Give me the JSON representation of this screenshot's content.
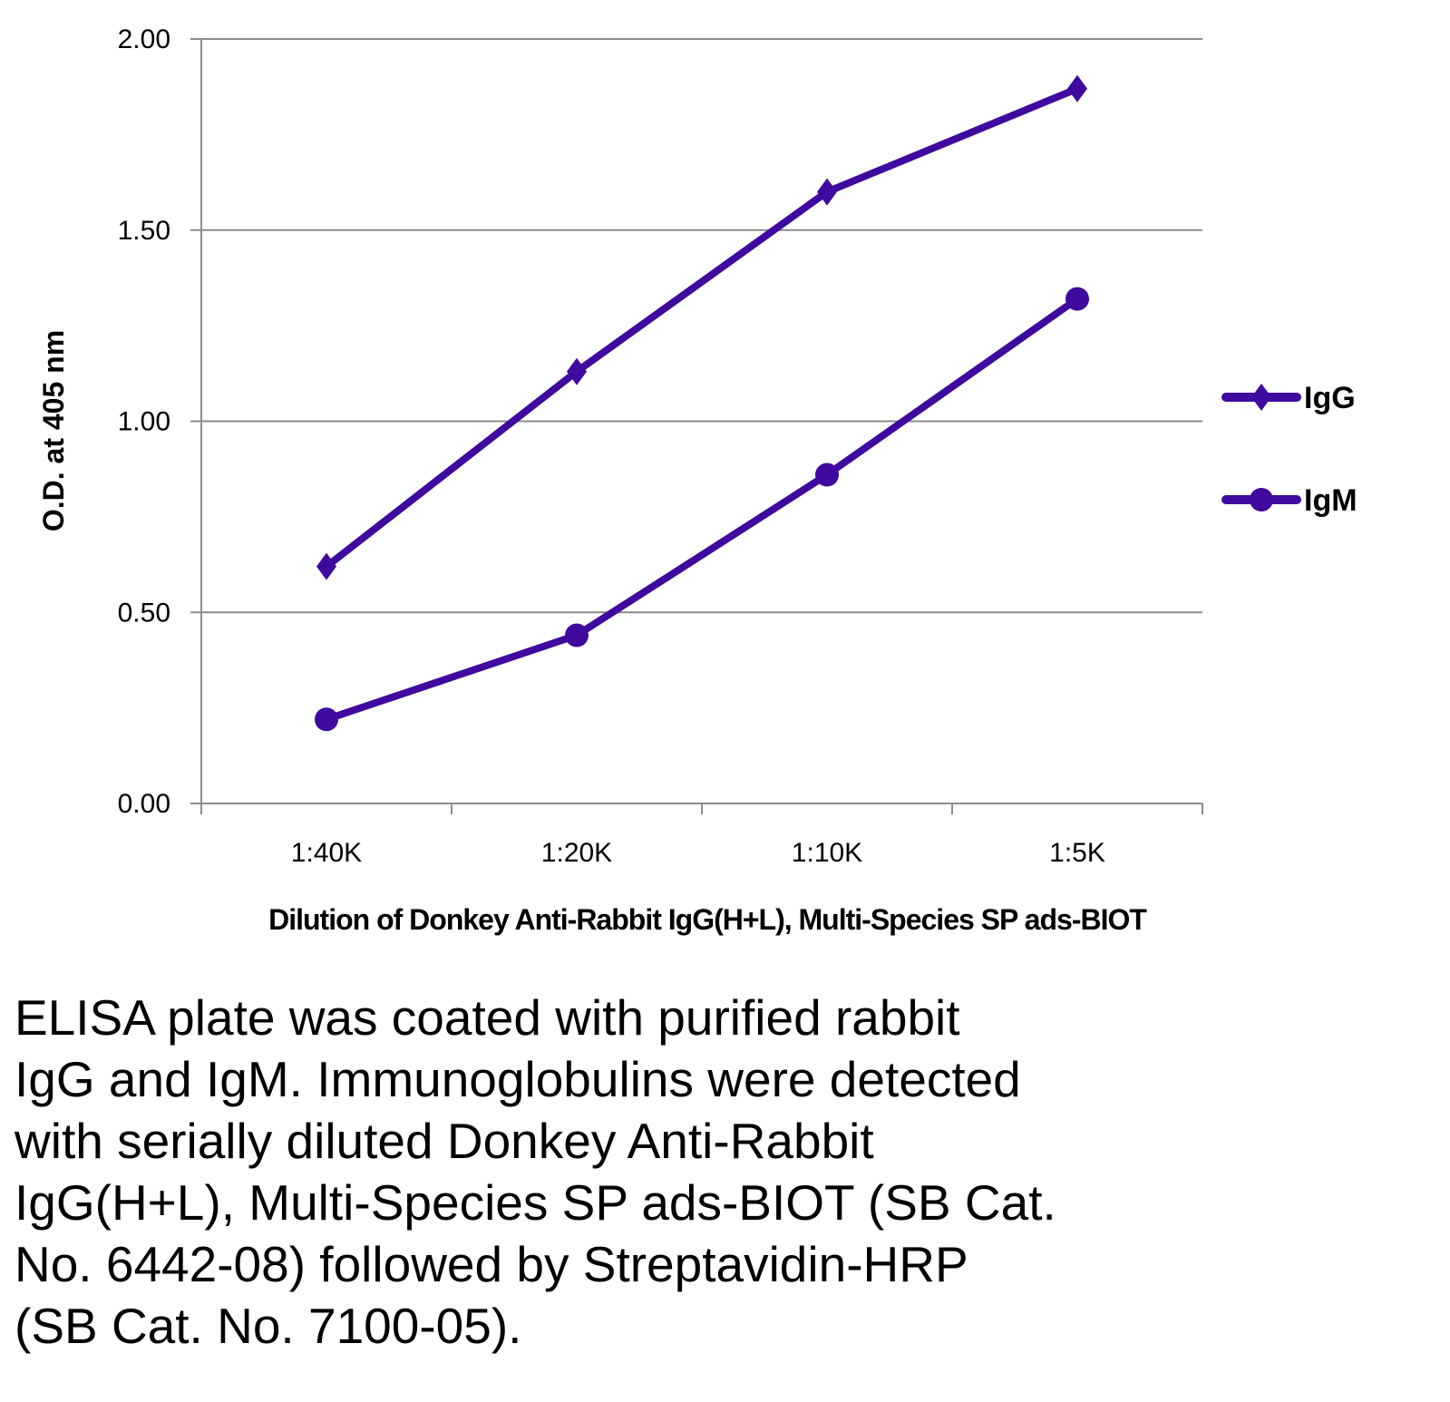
{
  "chart_data": {
    "type": "line",
    "title": "",
    "xlabel": "Dilution of Donkey Anti-Rabbit IgG(H+L), Multi-Species SP ads-BIOT",
    "ylabel": "O.D. at 405 nm",
    "categories": [
      "1:40K",
      "1:20K",
      "1:10K",
      "1:5K"
    ],
    "ylim": [
      0,
      2
    ],
    "yticks": [
      "0.00",
      "0.50",
      "1.00",
      "1.50",
      "2.00"
    ],
    "grid": "horizontal",
    "legend_position": "right",
    "series": [
      {
        "name": "IgG",
        "marker": "diamond",
        "color": "#3f0a9e",
        "values": [
          0.62,
          1.13,
          1.6,
          1.87
        ]
      },
      {
        "name": "IgM",
        "marker": "circle",
        "color": "#3f0a9e",
        "values": [
          0.22,
          0.44,
          0.86,
          1.32
        ]
      }
    ]
  },
  "caption": [
    "ELISA plate was coated with purified rabbit",
    "IgG and IgM.  Immunoglobulins were detected",
    "with serially diluted Donkey Anti-Rabbit",
    "IgG(H+L), Multi-Species SP ads-BIOT (SB Cat.",
    "No. 6442-08) followed by Streptavidin-HRP",
    "(SB Cat. No. 7100-05)."
  ]
}
